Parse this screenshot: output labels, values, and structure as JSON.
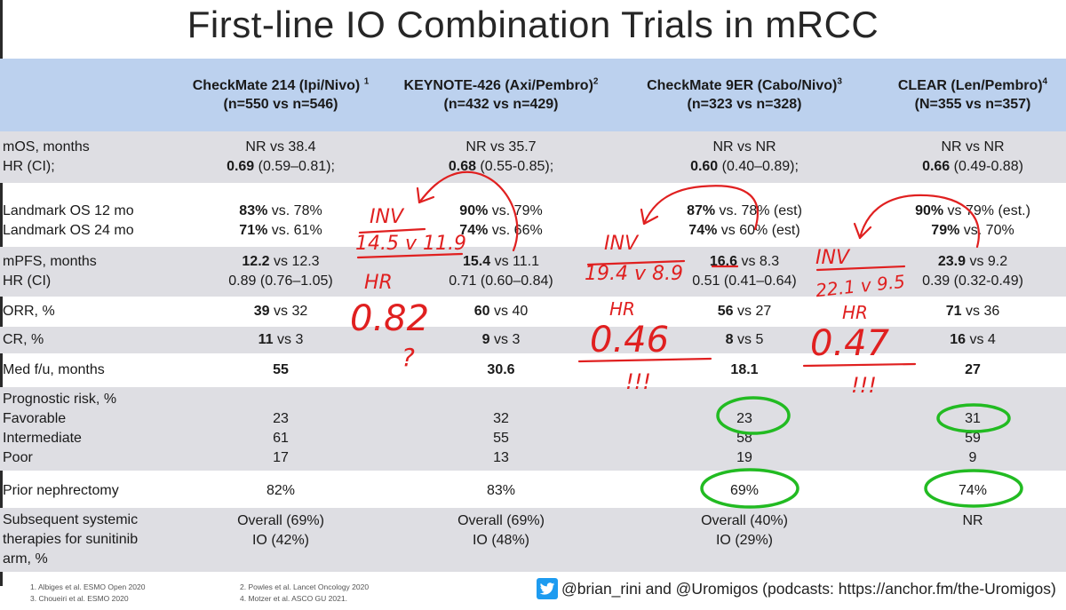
{
  "title": "First-line IO Combination Trials in mRCC",
  "headers": [
    {
      "name": "CheckMate 214 (Ipi/Nivo)",
      "sup": "1",
      "n": "(n=550 vs n=546)"
    },
    {
      "name": "KEYNOTE-426 (Axi/Pembro)",
      "sup": "2",
      "n": "(n=432 vs n=429)"
    },
    {
      "name": "CheckMate 9ER (Cabo/Nivo)",
      "sup": "3",
      "n": "(n=323 vs n=328)"
    },
    {
      "name": "CLEAR (Len/Pembro)",
      "sup": "4",
      "n": "(N=355 vs n=357)"
    }
  ],
  "rows": {
    "mos": {
      "label1": "mOS, months",
      "label2": "HR (CI);",
      "c1": {
        "a": "NR vs 38.4",
        "b_bold": "0.69",
        "b_rest": " (0.59–0.81);"
      },
      "c2": {
        "a": "NR vs 35.7",
        "b_bold": "0.68",
        "b_rest": " (0.55-0.85);"
      },
      "c3": {
        "a": "NR vs NR",
        "b_bold": "0.60",
        "b_rest": " (0.40–0.89);"
      },
      "c4": {
        "a": "NR vs NR",
        "b_bold": "0.66",
        "b_rest": " (0.49-0.88)"
      }
    },
    "landmark": {
      "label1": "Landmark OS 12 mo",
      "label2": "Landmark OS 24 mo",
      "c1": {
        "a_bold": "83%",
        "a_rest": " vs. 78%",
        "b_bold": "71%",
        "b_rest": " vs. 61%"
      },
      "c2": {
        "a_bold": "90%",
        "a_rest": " vs. 79%",
        "b_bold": "74%",
        "b_rest": " vs. 66%"
      },
      "c3": {
        "a_bold": "87%",
        "a_rest": " vs. 78% (est)",
        "b_bold": "74%",
        "b_rest": " vs 60% (est)"
      },
      "c4": {
        "a_bold": "90%",
        "a_rest": " vs 79% (est.)",
        "b_bold": "79%",
        "b_rest": " vs. 70%"
      }
    },
    "pfs": {
      "label1": "mPFS, months",
      "label2": "HR (CI)",
      "c1": {
        "a_bold": "12.2",
        "a_rest": " vs 12.3",
        "b": "0.89 (0.76–1.05)"
      },
      "c2": {
        "a_bold": "15.4",
        "a_rest": " vs 11.1",
        "b": "0.71 (0.60–0.84)"
      },
      "c3": {
        "a_bold": "16.6",
        "a_rest": " vs 8.3",
        "b": "0.51 (0.41–0.64)"
      },
      "c4": {
        "a_bold": "23.9",
        "a_rest": " vs 9.2",
        "b": "0.39 (0.32-0.49)"
      }
    },
    "orr": {
      "label": "ORR, %",
      "c1": {
        "bold": "39",
        "rest": " vs 32"
      },
      "c2": {
        "bold": "60",
        "rest": " vs 40"
      },
      "c3": {
        "bold": "56",
        "rest": " vs 27"
      },
      "c4": {
        "bold": "71",
        "rest": " vs 36"
      }
    },
    "cr": {
      "label": "CR, %",
      "c1": {
        "bold": "11",
        "rest": " vs 3"
      },
      "c2": {
        "bold": "9",
        "rest": " vs 3"
      },
      "c3": {
        "bold": "8",
        "rest": " vs 5"
      },
      "c4": {
        "bold": "16",
        "rest": " vs 4"
      }
    },
    "medfu": {
      "label": "Med f/u, months",
      "c1": "55",
      "c2": "30.6",
      "c3": "18.1",
      "c4": "27"
    },
    "risk": {
      "label0": "Prognostic risk, %",
      "label1": "Favorable",
      "label2": "Intermediate",
      "label3": "Poor",
      "c1": [
        "23",
        "61",
        "17"
      ],
      "c2": [
        "32",
        "55",
        "13"
      ],
      "c3": [
        "23",
        "58",
        "19"
      ],
      "c4": [
        "31",
        "59",
        "9"
      ]
    },
    "nephrectomy": {
      "label": "Prior nephrectomy",
      "c1": "82%",
      "c2": "83%",
      "c3": "69%",
      "c4": "74%"
    },
    "subsequent": {
      "label1": "Subsequent systemic",
      "label2": "therapies for sunitinib",
      "label3": "arm, %",
      "c1": [
        "Overall (69%)",
        "IO (42%)"
      ],
      "c2": [
        "Overall (69%)",
        "IO (48%)"
      ],
      "c3": [
        "Overall (40%)",
        "IO (29%)"
      ],
      "c4": [
        "NR"
      ]
    }
  },
  "annotations": {
    "inv1": "INV",
    "val1": "14.5 v 11.9",
    "hr1": "HR",
    "hrv1": "0.82",
    "q1": "?",
    "inv2": "INV",
    "val2": "19.4 v 8.9",
    "hr2": "HR",
    "hrv2": "0.46",
    "ex2": "!!!",
    "inv3": "INV",
    "val3": "22.1 v 9.5",
    "hr3": "HR",
    "hrv3": "0.47",
    "ex3": "!!!"
  },
  "footnotes": {
    "f1": "1.    Albiges et al. ESMO Open 2020",
    "f3": "3.    Choueiri et al. ESMO 2020",
    "f2": "2. Powles et al. Lancet Oncology 2020",
    "f4": "4. Motzer et al. ASCO GU 2021."
  },
  "credit": "@brian_rini and @Uromigos (podcasts: https://anchor.fm/the-Uromigos)",
  "colors": {
    "header_bg": "#bcd1ee",
    "shade_bg": "#dedee3",
    "ink_red": "#e02020",
    "ink_green": "#22bb22",
    "twitter": "#1d9bf0"
  }
}
